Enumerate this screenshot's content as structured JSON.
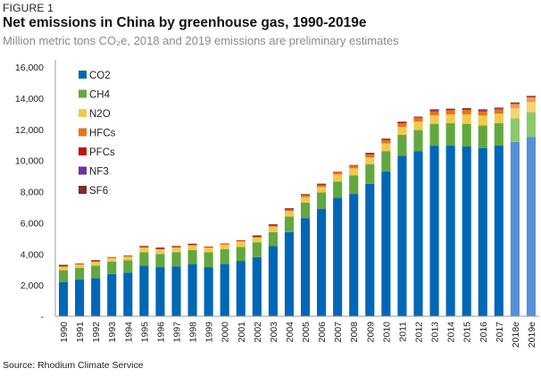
{
  "header": {
    "figure_label": "FIGURE 1",
    "title": "Net emissions in China by greenhouse gas, 1990-2019e",
    "subtitle": "Million metric tons CO₂e, 2018 and 2019 emissions are preliminary estimates"
  },
  "footer": {
    "source": "Source: Rhodium Climate Service"
  },
  "chart_data": {
    "type": "bar",
    "stacked": true,
    "title": "Net emissions in China by greenhouse gas, 1990-2019e",
    "xlabel": "",
    "ylabel": "Million metric tons CO2e",
    "ylim": [
      0,
      16000
    ],
    "yticks": [
      0,
      2000,
      4000,
      6000,
      8000,
      10000,
      12000,
      14000,
      16000
    ],
    "ytick_labels": [
      "-",
      "2,000",
      "4,000",
      "6,000",
      "8,000",
      "10,000",
      "12,000",
      "14,000",
      "16,000"
    ],
    "grid": false,
    "legend_position": "top-left",
    "categories": [
      "1990",
      "1991",
      "1992",
      "1993",
      "1994",
      "1995",
      "1996",
      "1997",
      "1998",
      "1999",
      "2000",
      "2001",
      "2002",
      "2003",
      "2004",
      "2005",
      "2006",
      "2007",
      "2008",
      "2009",
      "2010",
      "2011",
      "2012",
      "2013",
      "2014",
      "2015",
      "2016",
      "2017",
      "2018e",
      "2019e"
    ],
    "estimated_categories": [
      "2018e",
      "2019e"
    ],
    "series": [
      {
        "name": "CO2",
        "color": "#0067b6",
        "estimate_color": "#5590d6",
        "values": [
          2200,
          2350,
          2450,
          2700,
          2800,
          3250,
          3150,
          3200,
          3350,
          3150,
          3350,
          3550,
          3800,
          4500,
          5400,
          6300,
          6900,
          7600,
          7850,
          8500,
          9300,
          10300,
          10600,
          10950,
          10950,
          10900,
          10800,
          10950,
          11200,
          11500
        ]
      },
      {
        "name": "CH4",
        "color": "#62a83e",
        "estimate_color": "#8cca6c",
        "values": [
          750,
          750,
          800,
          800,
          800,
          850,
          850,
          900,
          900,
          950,
          950,
          900,
          950,
          900,
          1000,
          1000,
          1050,
          1050,
          1200,
          1250,
          1300,
          1350,
          1350,
          1400,
          1450,
          1450,
          1450,
          1450,
          1500,
          1600
        ]
      },
      {
        "name": "N2O",
        "color": "#f2c94c",
        "estimate_color": "#f5d571",
        "values": [
          250,
          250,
          250,
          250,
          250,
          300,
          300,
          300,
          300,
          300,
          300,
          350,
          300,
          350,
          350,
          350,
          350,
          450,
          450,
          450,
          500,
          500,
          550,
          550,
          550,
          600,
          650,
          600,
          650,
          650
        ]
      },
      {
        "name": "HFCs",
        "color": "#e8731a",
        "estimate_color": "#f59a4e",
        "values": [
          20,
          20,
          30,
          30,
          30,
          40,
          40,
          40,
          40,
          50,
          50,
          60,
          60,
          80,
          100,
          110,
          130,
          150,
          170,
          190,
          200,
          230,
          250,
          260,
          280,
          300,
          250,
          280,
          300,
          320
        ]
      },
      {
        "name": "PFCs",
        "color": "#c0120c",
        "estimate_color": "#c0120c",
        "values": [
          20,
          20,
          20,
          20,
          20,
          20,
          20,
          20,
          20,
          20,
          20,
          20,
          20,
          25,
          30,
          30,
          30,
          30,
          40,
          50,
          50,
          60,
          60,
          70,
          40,
          60,
          80,
          60,
          20,
          20
        ]
      },
      {
        "name": "NF3",
        "color": "#7030a0",
        "estimate_color": "#7030a0",
        "values": [
          0,
          0,
          0,
          0,
          0,
          0,
          0,
          0,
          0,
          0,
          0,
          0,
          0,
          0,
          0,
          0,
          0,
          0,
          0,
          0,
          0,
          0,
          5,
          5,
          5,
          5,
          5,
          5,
          5,
          5
        ]
      },
      {
        "name": "SF6",
        "color": "#7b2f2a",
        "estimate_color": "#7b2f2a",
        "values": [
          60,
          0,
          50,
          0,
          0,
          50,
          50,
          50,
          50,
          0,
          0,
          0,
          60,
          50,
          50,
          50,
          50,
          0,
          0,
          50,
          50,
          50,
          0,
          50,
          50,
          50,
          50,
          50,
          50,
          50
        ]
      }
    ]
  }
}
